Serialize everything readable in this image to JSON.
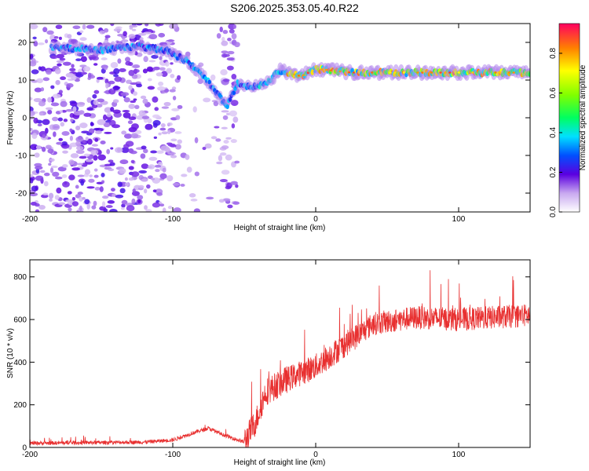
{
  "title": "S206.2025.353.05.40.R22",
  "chart_data": [
    {
      "type": "heatmap",
      "xlabel": "Height of straight line (km)",
      "ylabel": "Frequency (Hz)",
      "xlim": [
        -200,
        150
      ],
      "ylim": [
        -25,
        25
      ],
      "x_ticks": [
        "-200",
        "-100",
        "0",
        "100"
      ],
      "y_ticks": [
        "-20",
        "-10",
        "0",
        "10",
        "20"
      ],
      "colorbar": {
        "label": "Normalized spectral amplitude",
        "range": [
          0,
          0.95
        ],
        "ticks": [
          "0.0",
          "0.2",
          "0.4",
          "0.6",
          "0.8"
        ]
      },
      "ridge": [
        {
          "x": -175,
          "y": 18.5
        },
        {
          "x": -150,
          "y": 18
        },
        {
          "x": -125,
          "y": 19
        },
        {
          "x": -105,
          "y": 18
        },
        {
          "x": -90,
          "y": 15
        },
        {
          "x": -78,
          "y": 11
        },
        {
          "x": -70,
          "y": 7
        },
        {
          "x": -62,
          "y": 3
        },
        {
          "x": -55,
          "y": 9
        },
        {
          "x": -45,
          "y": 8
        },
        {
          "x": -35,
          "y": 9
        },
        {
          "x": -25,
          "y": 12.5
        },
        {
          "x": -10,
          "y": 11
        },
        {
          "x": 0,
          "y": 13
        },
        {
          "x": 25,
          "y": 12
        },
        {
          "x": 75,
          "y": 12
        },
        {
          "x": 150,
          "y": 12
        }
      ]
    },
    {
      "type": "line",
      "xlabel": "Height of straight line (km)",
      "ylabel": "SNR (10 * v/v)",
      "xlim": [
        -200,
        150
      ],
      "ylim": [
        0,
        880
      ],
      "x_ticks": [
        "-200",
        "-100",
        "0",
        "100"
      ],
      "y_ticks": [
        "0",
        "200",
        "400",
        "600",
        "800"
      ],
      "color": "#e83030",
      "envelope": [
        {
          "x": -200,
          "y": 20
        },
        {
          "x": -120,
          "y": 25
        },
        {
          "x": -100,
          "y": 35
        },
        {
          "x": -85,
          "y": 70
        },
        {
          "x": -75,
          "y": 90
        },
        {
          "x": -65,
          "y": 60
        },
        {
          "x": -50,
          "y": 25
        },
        {
          "x": -42,
          "y": 120
        },
        {
          "x": -35,
          "y": 260
        },
        {
          "x": -20,
          "y": 320
        },
        {
          "x": 0,
          "y": 380
        },
        {
          "x": 20,
          "y": 480
        },
        {
          "x": 40,
          "y": 580
        },
        {
          "x": 70,
          "y": 610
        },
        {
          "x": 100,
          "y": 600
        },
        {
          "x": 150,
          "y": 620
        }
      ]
    }
  ]
}
